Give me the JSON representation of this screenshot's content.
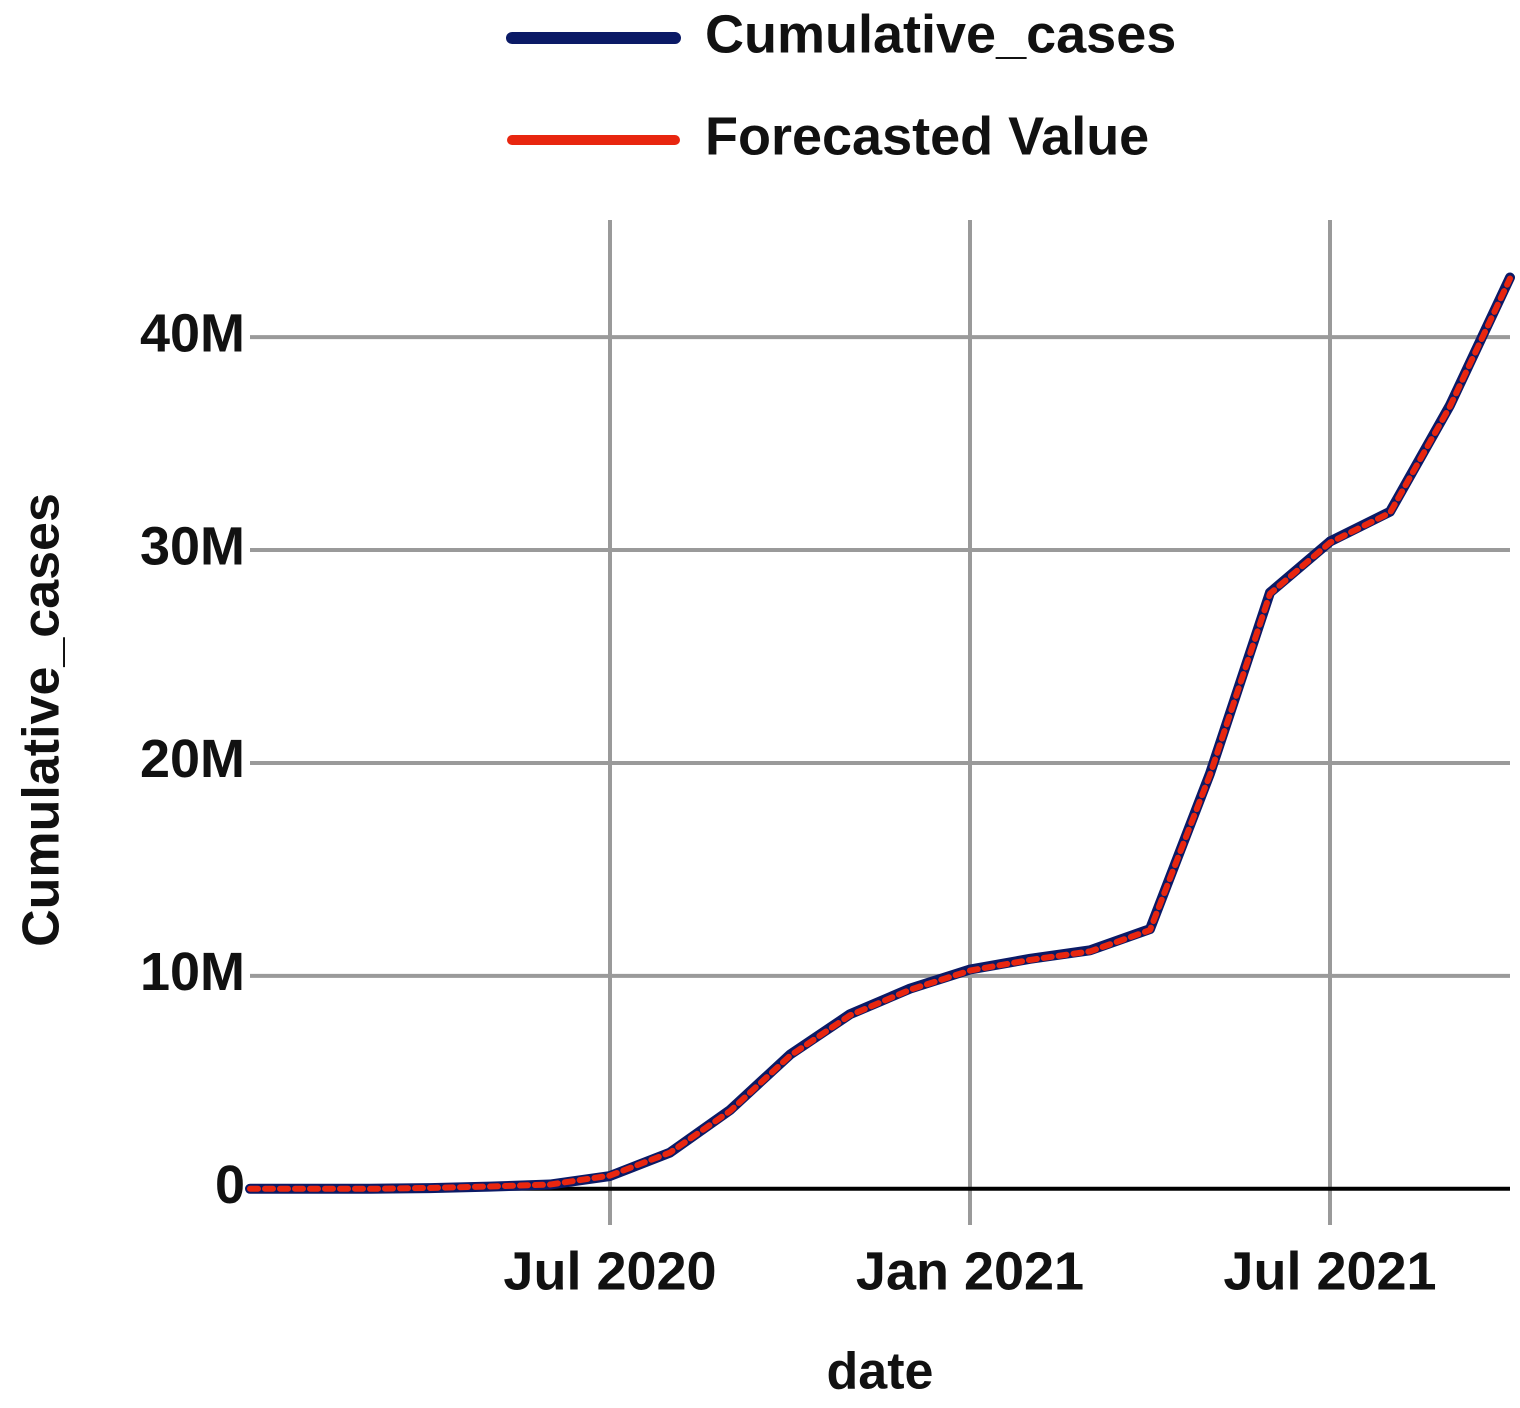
{
  "chart_data": {
    "type": "line",
    "x_label": "date",
    "y_label": "Cumulative_cases",
    "x": [
      "2020-01",
      "2020-02",
      "2020-03",
      "2020-04",
      "2020-05",
      "2020-06",
      "2020-07",
      "2020-08",
      "2020-09",
      "2020-10",
      "2020-11",
      "2020-12",
      "2021-01",
      "2021-02",
      "2021-03",
      "2021-04",
      "2021-05",
      "2021-06",
      "2021-07",
      "2021-08",
      "2021-09",
      "2021-10"
    ],
    "series": [
      {
        "name": "Cumulative_cases",
        "color": "#0b1a66",
        "values": [
          0,
          0,
          0,
          30000,
          100000,
          200000,
          600000,
          1700000,
          3700000,
          6300000,
          8200000,
          9400000,
          10300000,
          10800000,
          11200000,
          12200000,
          19500000,
          28000000,
          30400000,
          31800000,
          36800000,
          42800000
        ]
      },
      {
        "name": "Forecasted Value",
        "color": "#e8260f",
        "values": [
          0,
          0,
          0,
          40000,
          110000,
          200000,
          620000,
          1700000,
          3650000,
          6250000,
          8150000,
          9350000,
          10250000,
          10750000,
          11150000,
          12150000,
          19450000,
          27950000,
          30350000,
          31750000,
          36750000,
          42750000
        ]
      }
    ],
    "xlim": [
      "2020-01",
      "2021-10"
    ],
    "xticks": [
      {
        "value": "2020-07",
        "label": "Jul 2020"
      },
      {
        "value": "2021-01",
        "label": "Jan 2021"
      },
      {
        "value": "2021-07",
        "label": "Jul 2021"
      }
    ],
    "ylim": [
      -1700000,
      45500000
    ],
    "yticks": [
      0,
      {
        "value": 10000000,
        "label": "10M"
      },
      {
        "value": 20000000,
        "label": "20M"
      },
      {
        "value": 30000000,
        "label": "30M"
      },
      {
        "value": 40000000,
        "label": "40M"
      }
    ],
    "grid": true,
    "legend": "top"
  }
}
